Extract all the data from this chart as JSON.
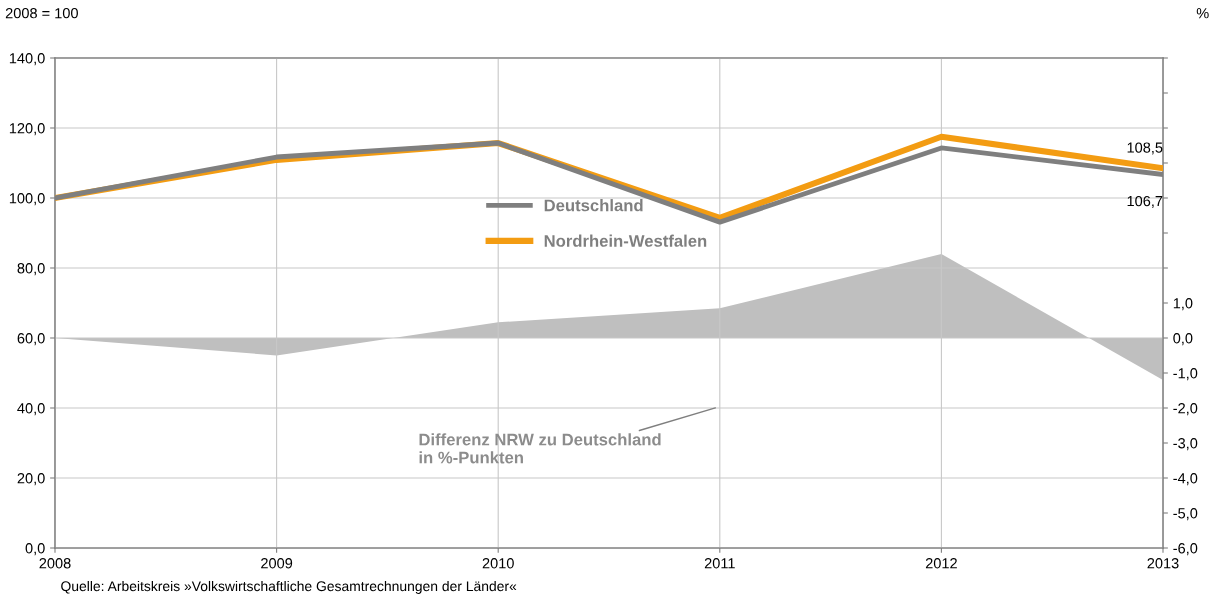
{
  "chart_data": {
    "type": "line",
    "title": "2008 = 100",
    "y2label": "%",
    "x": [
      "2008",
      "2009",
      "2010",
      "2011",
      "2012",
      "2013"
    ],
    "xlim": [
      "2008",
      "2013"
    ],
    "xticks": [
      {
        "value": "2008",
        "label": "2008"
      },
      {
        "value": "2009",
        "label": "2009"
      },
      {
        "value": "2010",
        "label": "2010"
      },
      {
        "value": "2011",
        "label": "2011"
      },
      {
        "value": "2012",
        "label": "2012"
      },
      {
        "value": "2013",
        "label": "2013"
      }
    ],
    "ylim": [
      0,
      140
    ],
    "yticks": [
      {
        "value": 0,
        "label": "0,0"
      },
      {
        "value": 20,
        "label": "20,0"
      },
      {
        "value": 40,
        "label": "40,0"
      },
      {
        "value": 60,
        "label": "60,0"
      },
      {
        "value": 80,
        "label": "80,0"
      },
      {
        "value": 100,
        "label": "100,0"
      },
      {
        "value": 120,
        "label": "120,0"
      },
      {
        "value": 140,
        "label": "140,0"
      }
    ],
    "y2lim": [
      -6,
      8
    ],
    "y2ticks": [
      {
        "value": -6,
        "label": "-6,0"
      },
      {
        "value": -5,
        "label": "-5,0"
      },
      {
        "value": -4,
        "label": "-4,0"
      },
      {
        "value": -3,
        "label": "-3,0"
      },
      {
        "value": -2,
        "label": "-2,0"
      },
      {
        "value": -1,
        "label": "-1,0"
      },
      {
        "value": 0,
        "label": "0,0"
      },
      {
        "value": 1,
        "label": "1,0"
      },
      {
        "value": 2,
        "label": null
      },
      {
        "value": 3,
        "label": null
      },
      {
        "value": 4,
        "label": null
      },
      {
        "value": 5,
        "label": null
      },
      {
        "value": 6,
        "label": null
      },
      {
        "value": 7,
        "label": null
      },
      {
        "value": 8,
        "label": null
      }
    ],
    "grid": true,
    "legend": "center",
    "series": [
      {
        "type": "area",
        "axis": "y2",
        "color": "#bfbfbf",
        "values": [
          0,
          -0.5,
          0.45,
          0.85,
          2.4,
          -1.2
        ]
      },
      {
        "name": "Deutschland",
        "color": "#7f7f7f",
        "values": [
          100,
          111.7,
          115.7,
          93.1,
          114.3,
          106.7
        ],
        "value_labels": [
          null,
          null,
          null,
          null,
          null,
          "106,7"
        ]
      },
      {
        "name": "Nordrhein-Westfalen",
        "color": "#f39c12",
        "values": [
          100,
          110.9,
          115.7,
          94.3,
          117.5,
          108.5
        ],
        "value_labels": [
          null,
          null,
          null,
          null,
          null,
          "108,5"
        ]
      }
    ],
    "annotations": [
      "Differenz NRW zu Deutschland\nin %-Punkten",
      "Quelle: Arbeitskreis »Volkswirtschaftliche Gesamtrechnungen der Länder«"
    ]
  }
}
